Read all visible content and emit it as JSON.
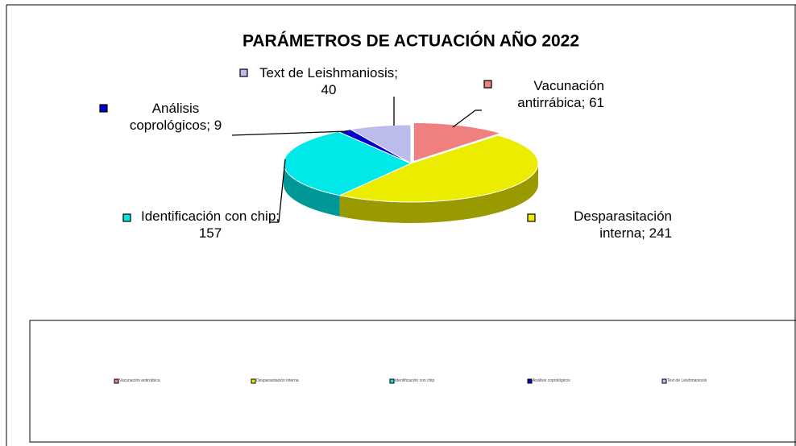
{
  "chart_data": {
    "type": "pie",
    "title": "PARÁMETROS DE ACTUACIÓN AÑO 2022",
    "categories": [
      "Vacunación antirrábica",
      "Desparasitación interna",
      "Identificación con chip",
      "Análisis coprológicos",
      "Text de Leishmaniosis"
    ],
    "values": [
      61,
      241,
      157,
      9,
      40
    ],
    "value_labels": [
      "Vacunación antirrábica; 61",
      "Desparasitación interna; 241",
      "Identificación con chip; 157",
      "Análisis coprológicos; 9",
      "Text de Leishmaniosis; 40"
    ],
    "colors": [
      "#f08080",
      "#ecec00",
      "#00e8e8",
      "#0000cc",
      "#bcbcec"
    ],
    "legend": "bottom"
  }
}
